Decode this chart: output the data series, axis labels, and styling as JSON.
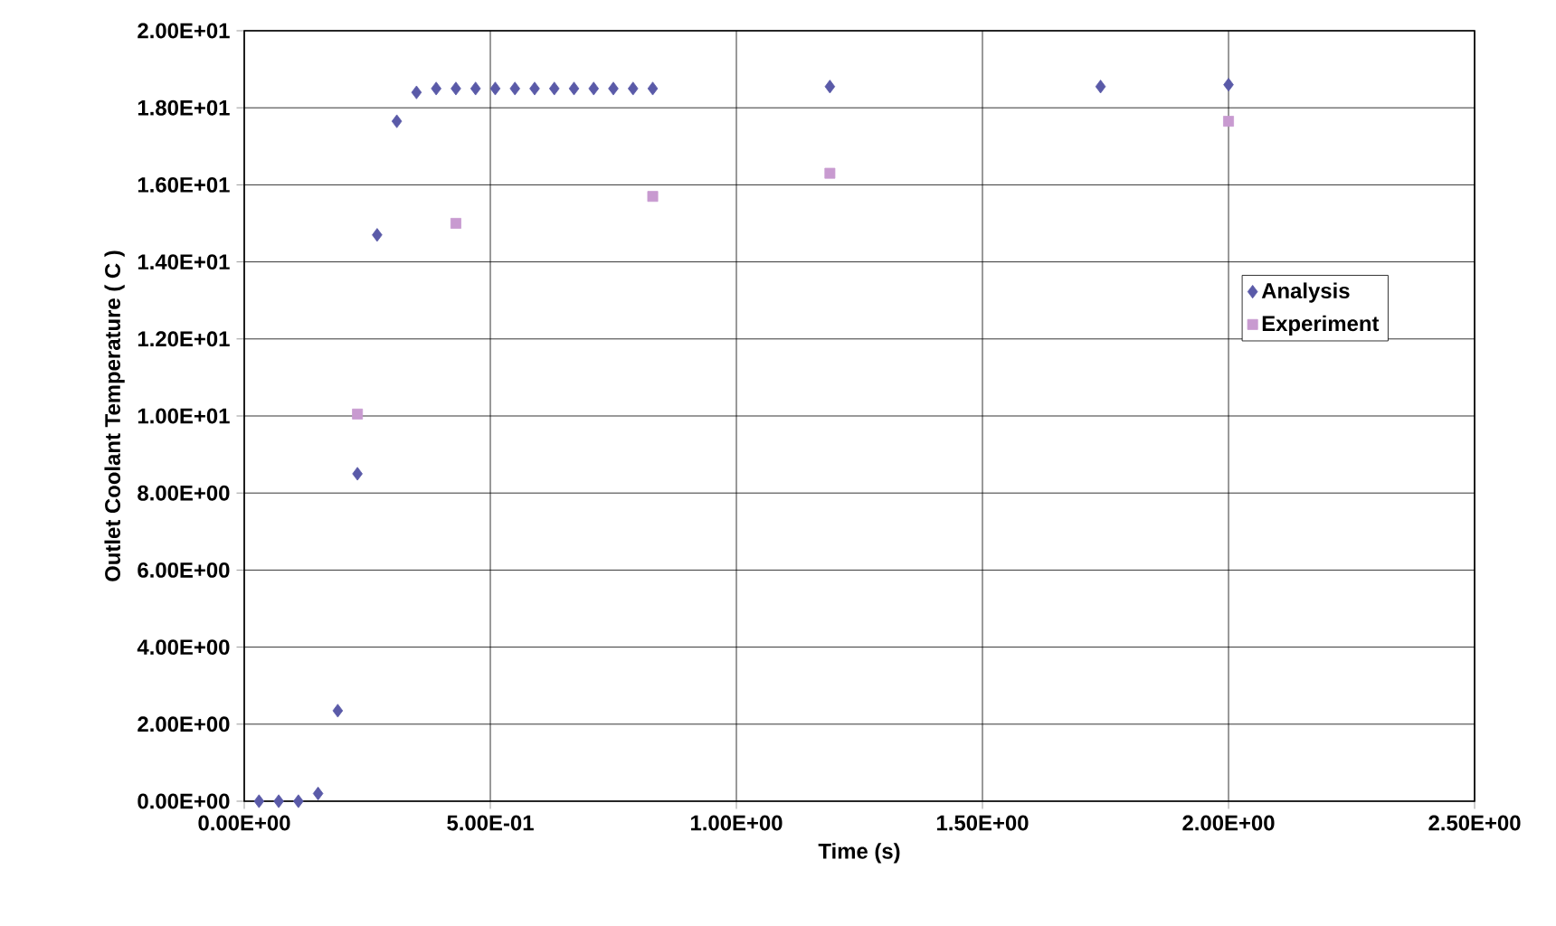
{
  "chart_data": {
    "type": "scatter",
    "xlabel": "Time (s)",
    "ylabel": "Outlet Coolant Temperature ( C )",
    "xlim": [
      0,
      2.5
    ],
    "ylim": [
      0,
      20
    ],
    "xticks": [
      {
        "value": 0,
        "label": "0.00E+00"
      },
      {
        "value": 0.5,
        "label": "5.00E-01"
      },
      {
        "value": 1,
        "label": "1.00E+00"
      },
      {
        "value": 1.5,
        "label": "1.50E+00"
      },
      {
        "value": 2,
        "label": "2.00E+00"
      },
      {
        "value": 2.5,
        "label": "2.50E+00"
      }
    ],
    "yticks": [
      {
        "value": 0,
        "label": "0.00E+00"
      },
      {
        "value": 2,
        "label": "2.00E+00"
      },
      {
        "value": 4,
        "label": "4.00E+00"
      },
      {
        "value": 6,
        "label": "6.00E+00"
      },
      {
        "value": 8,
        "label": "8.00E+00"
      },
      {
        "value": 10,
        "label": "1.00E+01"
      },
      {
        "value": 12,
        "label": "1.20E+01"
      },
      {
        "value": 14,
        "label": "1.40E+01"
      },
      {
        "value": 16,
        "label": "1.60E+01"
      },
      {
        "value": 18,
        "label": "1.80E+01"
      },
      {
        "value": 20,
        "label": "2.00E+01"
      }
    ],
    "grid": true,
    "legend": "right",
    "series": [
      {
        "name": "Analysis",
        "color": "#5a5aa8",
        "marker": "diamond",
        "x": [
          0.03,
          0.07,
          0.11,
          0.15,
          0.19,
          0.23,
          0.27,
          0.31,
          0.35,
          0.39,
          0.43,
          0.47,
          0.51,
          0.55,
          0.59,
          0.63,
          0.67,
          0.71,
          0.75,
          0.79,
          0.83,
          1.19,
          1.74,
          2.0
        ],
        "values": [
          0,
          0,
          0,
          0.2,
          2.35,
          8.5,
          14.7,
          17.65,
          18.4,
          18.5,
          18.5,
          18.5,
          18.5,
          18.5,
          18.5,
          18.5,
          18.5,
          18.5,
          18.5,
          18.5,
          18.5,
          18.55,
          18.55,
          18.6
        ]
      },
      {
        "name": "Experiment",
        "color": "#c89ad0",
        "marker": "square",
        "x": [
          0.23,
          0.43,
          0.83,
          1.19,
          2.0
        ],
        "values": [
          10.05,
          15.0,
          15.7,
          16.3,
          17.65
        ]
      }
    ]
  }
}
